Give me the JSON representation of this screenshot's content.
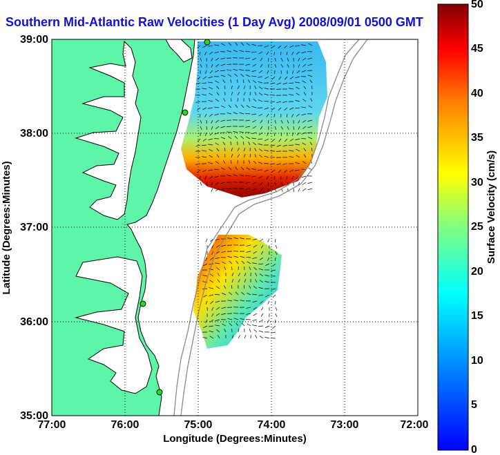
{
  "title": "Southern Mid-Atlantic Raw Velocities (1 Day Avg) 2008/09/01 0500 GMT",
  "map": {
    "x_axis_label": "Longitude (Degrees:Minutes)",
    "y_axis_label": "Latitude (Degrees:Minutes)",
    "x_ticks": [
      "77:00",
      "76:00",
      "75:00",
      "74:00",
      "73:00",
      "72:00"
    ],
    "y_ticks": [
      "39:00",
      "38:00",
      "37:00",
      "36:00",
      "35:00"
    ],
    "lon_range": [
      -77,
      -72
    ],
    "lat_range": [
      35,
      39
    ],
    "grid": "dotted",
    "land_color": "#5ef5a8",
    "coast_color": "#000000",
    "bathymetry_color": "#888888",
    "current_stations": [
      "station-north",
      "station-delmarva",
      "station-outer-banks-north",
      "station-outer-banks-south"
    ]
  },
  "colorbar": {
    "label": "Surface Velocity (cm/s)",
    "ticks": [
      "50",
      "45",
      "40",
      "35",
      "30",
      "25",
      "20",
      "15",
      "10",
      "5",
      "0"
    ],
    "min": 0,
    "max": 50,
    "colormap": "jet"
  }
}
